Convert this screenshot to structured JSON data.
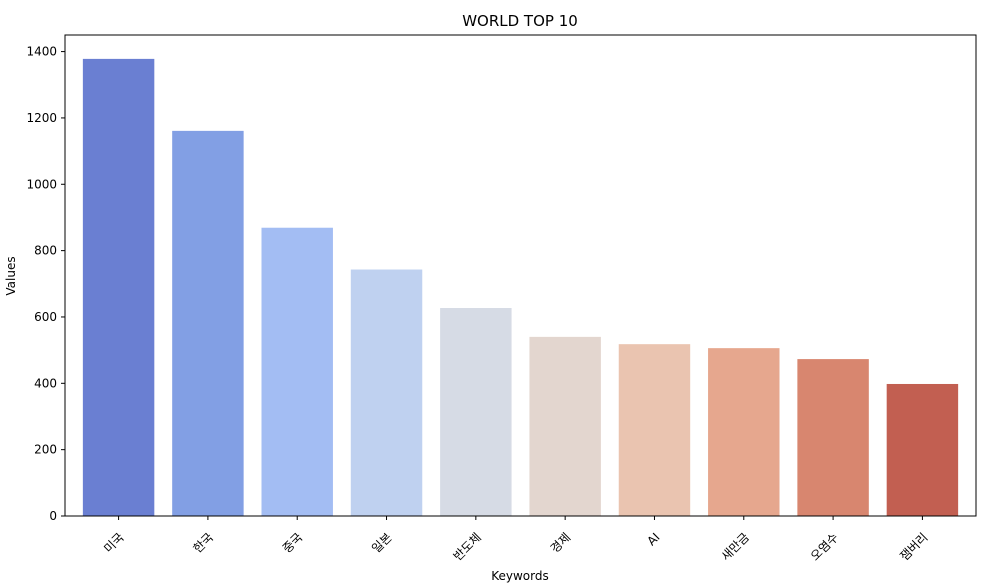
{
  "chart_data": {
    "type": "bar",
    "title": "WORLD TOP 10",
    "xlabel": "Keywords",
    "ylabel": "Values",
    "categories": [
      "미국",
      "한국",
      "중국",
      "일본",
      "반도체",
      "경제",
      "AI",
      "새만금",
      "오염수",
      "잼버리"
    ],
    "values": [
      1378,
      1161,
      869,
      743,
      627,
      540,
      518,
      506,
      473,
      398
    ],
    "ylim": [
      0,
      1450
    ],
    "yticks": [
      0,
      200,
      400,
      600,
      800,
      1000,
      1200,
      1400
    ],
    "grid": false,
    "bar_colors": [
      "#6a7fd2",
      "#829fe4",
      "#a3bdf3",
      "#bfd1f0",
      "#d6dbe5",
      "#e3d6cf",
      "#eac4b0",
      "#e6a78e",
      "#d8866f",
      "#c25f51"
    ]
  }
}
